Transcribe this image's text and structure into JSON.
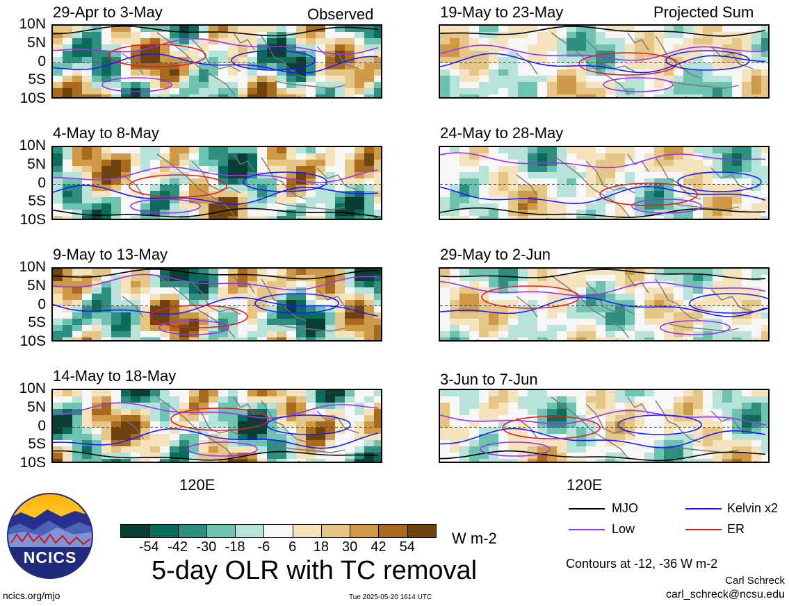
{
  "panels": {
    "observed": [
      {
        "title": "29-Apr to 3-May",
        "tag": "Observed"
      },
      {
        "title": "4-May to 8-May"
      },
      {
        "title": "9-May to 13-May"
      },
      {
        "title": "14-May to 18-May"
      }
    ],
    "projected": [
      {
        "title": "19-May to 23-May",
        "tag": "Projected Sum"
      },
      {
        "title": "24-May to 28-May"
      },
      {
        "title": "29-May to 2-Jun"
      },
      {
        "title": "3-Jun to 7-Jun"
      }
    ]
  },
  "axes": {
    "lat_labels": [
      "10N",
      "5N",
      "0",
      "5S",
      "10S"
    ],
    "lon_label": "120E"
  },
  "colorbar": {
    "ticks": [
      "-54",
      "-42",
      "-30",
      "-18",
      "-6",
      "6",
      "18",
      "30",
      "42",
      "54"
    ],
    "colors": [
      "#0a3d33",
      "#0d6b5c",
      "#2e8f80",
      "#6dc2b2",
      "#b8e3da",
      "#f7f7f7",
      "#f4e3bd",
      "#e6c686",
      "#cf9a48",
      "#a86a1e",
      "#6e4310"
    ],
    "units": "W m-2"
  },
  "legend": {
    "mjo": "MJO",
    "kelvin": "Kelvin x2",
    "low": "Low",
    "er": "ER",
    "colors": {
      "mjo": "#000000",
      "kelvin": "#1a1aff",
      "low": "#9933ee",
      "er": "#e02020"
    }
  },
  "main_title": "5-day OLR with TC removal",
  "contours_note": "Contours at -12, -36 W m-2",
  "author": "Carl Schreck",
  "email": "carl_schreck@ncsu.edu",
  "website": "ncics.org/mjo",
  "timestamp": "Tue 2025-05-20 1614 UTC",
  "logo_text": "NCICS",
  "chart_data": {
    "type": "heatmap",
    "title": "5-day OLR with TC removal",
    "units": "W m-2",
    "ylabel": "",
    "xlabel": "",
    "y_ticks": [
      "10N",
      "5N",
      "0",
      "5S",
      "10S"
    ],
    "x_ticks": [
      "120E"
    ],
    "color_levels": [
      -54,
      -42,
      -30,
      -18,
      -6,
      6,
      18,
      30,
      42,
      54
    ],
    "contour_levels": [
      -12,
      -36
    ],
    "series": [
      {
        "name": "MJO"
      },
      {
        "name": "Kelvin x2"
      },
      {
        "name": "Low"
      },
      {
        "name": "ER"
      }
    ],
    "panels": [
      {
        "period": "29-Apr to 3-May",
        "kind": "Observed"
      },
      {
        "period": "4-May to 8-May",
        "kind": "Observed"
      },
      {
        "period": "9-May to 13-May",
        "kind": "Observed"
      },
      {
        "period": "14-May to 18-May",
        "kind": "Observed"
      },
      {
        "period": "19-May to 23-May",
        "kind": "Projected Sum"
      },
      {
        "period": "24-May to 28-May",
        "kind": "Projected Sum"
      },
      {
        "period": "29-May to 2-Jun",
        "kind": "Projected Sum"
      },
      {
        "period": "3-Jun to 7-Jun",
        "kind": "Projected Sum"
      }
    ]
  }
}
